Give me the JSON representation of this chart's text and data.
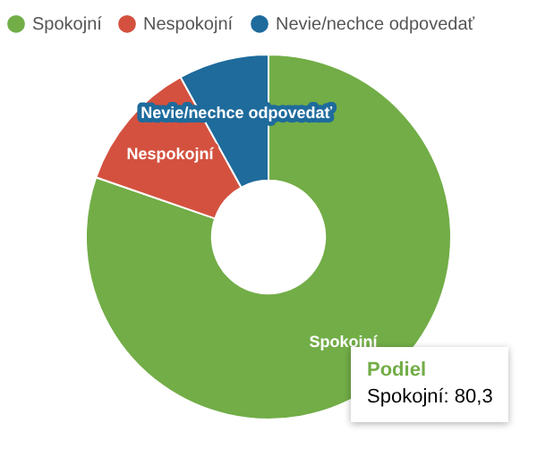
{
  "chart_data": {
    "type": "donut",
    "categories": [
      "Spokojní",
      "Nespokojní",
      "Nevie/nechce odpovedať"
    ],
    "values": [
      80.3,
      11.7,
      8.0
    ],
    "colors": [
      "#72ad47",
      "#d4513f",
      "#1e6b9c"
    ],
    "annotations": [
      "Podiel",
      "Spokojní: 80,3"
    ],
    "legend": "top left"
  }
}
